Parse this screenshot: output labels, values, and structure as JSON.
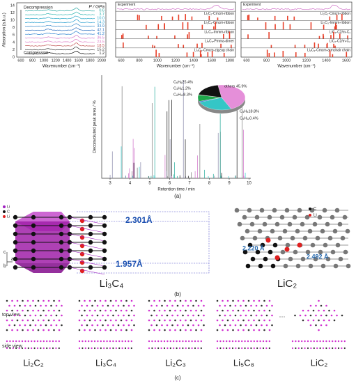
{
  "panel_a": {
    "spectra": {
      "pressure_label": "P / GPa",
      "decompression": "Decompression",
      "compression": "Compression",
      "pressures": [
        "0.6",
        "3.7",
        "10.0",
        "14.3",
        "33.9",
        "42.1",
        "41.2",
        "36.5",
        "23.5",
        "18.5",
        "15.2",
        "1.2"
      ],
      "y_label": "Absorption (a.b.u.)",
      "x_label": "Wavenumber (cm⁻¹)",
      "yticks": [
        "0",
        "2",
        "4",
        "6",
        "8",
        "10",
        "12",
        "14"
      ],
      "xticks": [
        "600",
        "800",
        "1000",
        "1200",
        "1400",
        "1600",
        "1800",
        "2000"
      ]
    },
    "theory_1": {
      "labels": [
        "Experiment",
        "Li₂C₂-Cmcm-ribbon",
        "Li₃C₄-Cmcm-ribbon",
        "Li₂C₃-Immm-ribbon",
        "Li₅C₈-Pmma-dimer",
        "Li₄C₃-Cmcm-zigzag chain"
      ],
      "x_label": "Wavenumber (cm⁻¹)",
      "xticks": [
        "600",
        "800",
        "1000",
        "1200",
        "1400",
        "1600",
        "1800"
      ]
    },
    "theory_2": {
      "labels": [
        "Experiment",
        "Li₂C₂-Cmcm-ribbon",
        "Li₂C₃-Immm-ribbon",
        "LiC₂-C2/m-C₁",
        "LiC₂-C2/m-C₂",
        "Li₂C₃-Cmcm-armchair chain"
      ],
      "x_label": "Wavenumber (cm⁻¹)",
      "xticks": [
        "600",
        "800",
        "1000",
        "1200",
        "1400",
        "1600"
      ]
    },
    "chromatogram": {
      "y_label": "Deconvoluted peak area / %",
      "x_label": "Retention time / min",
      "xticks": [
        "3",
        "4",
        "5",
        "6",
        "7",
        "8",
        "9",
        "10"
      ]
    },
    "pie": {
      "labels": [
        "others 45.9%",
        "C₆H₆25.4%",
        "C₃H₆1.2%",
        "C₆H₁₀8.3%",
        "C₅H₁₂0.4%",
        "C₄H₈18.8%"
      ],
      "values": [
        45.9,
        25.4,
        1.2,
        8.3,
        0.4,
        18.8
      ]
    },
    "label": "(a)"
  },
  "panel_b": {
    "legend": [
      "Li",
      "C",
      "Li"
    ],
    "axes": [
      "c",
      "a",
      "b"
    ],
    "li3c4": {
      "d1": "2.301Å",
      "d2": "1.957Å",
      "name": "Li₃C₄"
    },
    "lic2": {
      "legend": [
        "C",
        "Li"
      ],
      "d1": "2.220 Å",
      "d2": "2.492 Å",
      "name": "LiC₂"
    },
    "label": "(b)"
  },
  "panel_c": {
    "top_view": "top view",
    "side_view": "side view",
    "structures": [
      "Li₂C₂",
      "Li₃C₄",
      "Li₂C₃",
      "Li₅C₈",
      "LiC₂"
    ],
    "ellipsis": "···",
    "label": "(c)"
  }
}
